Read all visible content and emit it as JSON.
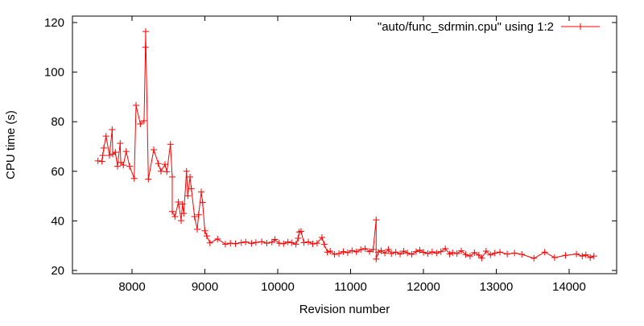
{
  "chart_data": {
    "type": "line",
    "title": "",
    "xlabel": "Revision number",
    "ylabel": "CPU time (s)",
    "xlim": [
      7182,
      14652
    ],
    "ylim": [
      18.7,
      122.6
    ],
    "xticks": [
      8000,
      9000,
      10000,
      11000,
      12000,
      13000,
      14000
    ],
    "yticks": [
      20,
      40,
      60,
      80,
      100,
      120
    ],
    "grid": false,
    "legend": {
      "placement": "top-right",
      "entries": [
        "\"auto/func_sdrmin.cpu\" using 1:2"
      ]
    },
    "series": [
      {
        "name": "\"auto/func_sdrmin.cpu\" using 1:2",
        "color": "#ff0000",
        "marker": "plus",
        "x": [
          7532,
          7587,
          7598,
          7613,
          7643,
          7690,
          7727,
          7735,
          7771,
          7800,
          7837,
          7845,
          7881,
          7919,
          7967,
          8030,
          8055,
          8114,
          8165,
          8184,
          8187,
          8224,
          8298,
          8361,
          8397,
          8453,
          8478,
          8527,
          8552,
          8552,
          8589,
          8637,
          8674,
          8692,
          8710,
          8748,
          8766,
          8796,
          8814,
          8858,
          8895,
          8914,
          8950,
          8969,
          8999,
          9026,
          9070,
          9174,
          9281,
          9350,
          9420,
          9500,
          9560,
          9640,
          9700,
          9780,
          9850,
          9920,
          9960,
          10020,
          10080,
          10140,
          10190,
          10250,
          10280,
          10295,
          10320,
          10360,
          10420,
          10480,
          10540,
          10607,
          10640,
          10681,
          10720,
          10780,
          10840,
          10900,
          10960,
          11020,
          11080,
          11140,
          11200,
          11260,
          11310,
          11351,
          11351,
          11380,
          11420,
          11470,
          11520,
          11560,
          11620,
          11680,
          11730,
          11780,
          11840,
          11900,
          11950,
          12000,
          12060,
          12120,
          12180,
          12240,
          12300,
          12360,
          12400,
          12460,
          12520,
          12580,
          12640,
          12700,
          12760,
          12800,
          12860,
          12920,
          12980,
          13050,
          13150,
          13250,
          13350,
          13517,
          13665,
          13800,
          13950,
          14100,
          14180,
          14230,
          14290,
          14340
        ],
        "y": [
          64.2,
          64,
          66.4,
          69.4,
          74.2,
          66.4,
          76.8,
          66.9,
          67.7,
          62,
          71.3,
          63.6,
          62.5,
          68,
          62,
          57.1,
          86.6,
          79.1,
          80.4,
          110,
          116.4,
          56.8,
          68.7,
          63.1,
          60,
          62.8,
          59.8,
          70.9,
          57.7,
          43.8,
          41.7,
          47.6,
          40.1,
          46.8,
          43,
          60,
          50.1,
          57.7,
          53,
          41.7,
          36.6,
          42.5,
          51.7,
          47.4,
          36,
          33.9,
          31.1,
          32.7,
          30.6,
          31,
          30.8,
          31.2,
          31.5,
          30.9,
          31.3,
          31.6,
          31,
          31.4,
          32.5,
          31,
          30.8,
          31.5,
          31.2,
          30.6,
          33,
          35.5,
          35.8,
          31.2,
          31.5,
          30.7,
          31,
          33.3,
          30.5,
          27.4,
          27.8,
          26.5,
          26.8,
          27.6,
          27.2,
          28,
          27.5,
          28.4,
          28.8,
          27.6,
          28.5,
          40.4,
          24.6,
          27.4,
          28,
          27,
          28.5,
          26.8,
          27.4,
          26.6,
          27.8,
          27,
          26.5,
          27.6,
          28.2,
          27.3,
          26.8,
          27.5,
          27,
          27.6,
          28.8,
          26.6,
          27.2,
          26.8,
          27.9,
          26.4,
          25.8,
          27.2,
          26.2,
          25,
          27.8,
          26.3,
          27,
          27.4,
          26.6,
          27,
          26.5,
          24.9,
          27.4,
          25.2,
          26.1,
          26.6,
          25.8,
          26.3,
          25.2,
          25.8
        ]
      }
    ]
  }
}
